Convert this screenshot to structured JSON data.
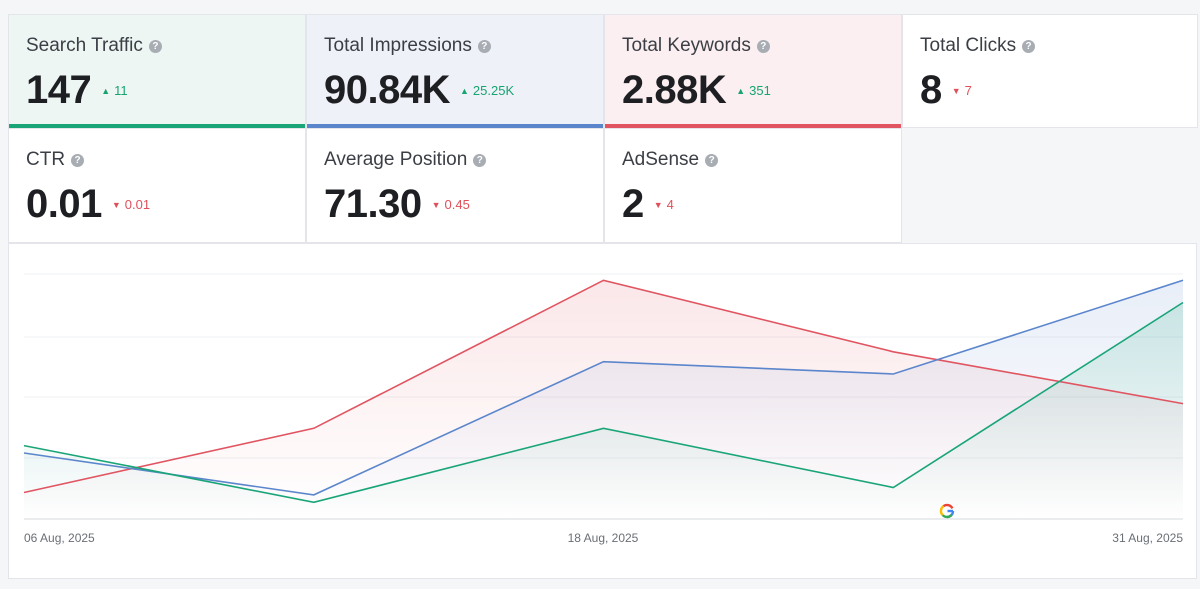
{
  "metrics": [
    {
      "label": "Search Traffic",
      "value": "147",
      "delta": "11",
      "dir": "up",
      "accent": "#1aa579",
      "tint": "#eef6f4"
    },
    {
      "label": "Total Impressions",
      "value": "90.84K",
      "delta": "25.25K",
      "dir": "up",
      "accent": "#5b86cc",
      "tint": "#eef2f8"
    },
    {
      "label": "Total Keywords",
      "value": "2.88K",
      "delta": "351",
      "dir": "up",
      "accent": "#e05561",
      "tint": "#fbeff1"
    },
    {
      "label": "Total Clicks",
      "value": "8",
      "delta": "7",
      "dir": "down",
      "accent": "",
      "tint": "#ffffff"
    },
    {
      "label": "CTR",
      "value": "0.01",
      "delta": "0.01",
      "dir": "down",
      "accent": "",
      "tint": "#ffffff"
    },
    {
      "label": "Average Position",
      "value": "71.30",
      "delta": "0.45",
      "dir": "down",
      "accent": "",
      "tint": "#ffffff"
    },
    {
      "label": "AdSense",
      "value": "2",
      "delta": "4",
      "dir": "down",
      "accent": "",
      "tint": "#ffffff"
    }
  ],
  "colors": {
    "up": "#16a46f",
    "down": "#e0505a"
  },
  "chart_data": {
    "type": "line",
    "x_labels": [
      "06 Aug, 2025",
      "18 Aug, 2025",
      "31 Aug, 2025"
    ],
    "grid": true,
    "series": [
      {
        "values": [
          0.14,
          0.4,
          1.0,
          0.71,
          0.5
        ],
        "color": "#e05561"
      },
      {
        "values": [
          0.3,
          0.13,
          0.67,
          0.62,
          1.0
        ],
        "color": "#5b86cc"
      },
      {
        "values": [
          0.33,
          0.1,
          0.4,
          0.16,
          0.91
        ],
        "color": "#1aa579"
      }
    ]
  },
  "source_icon": "google-icon"
}
